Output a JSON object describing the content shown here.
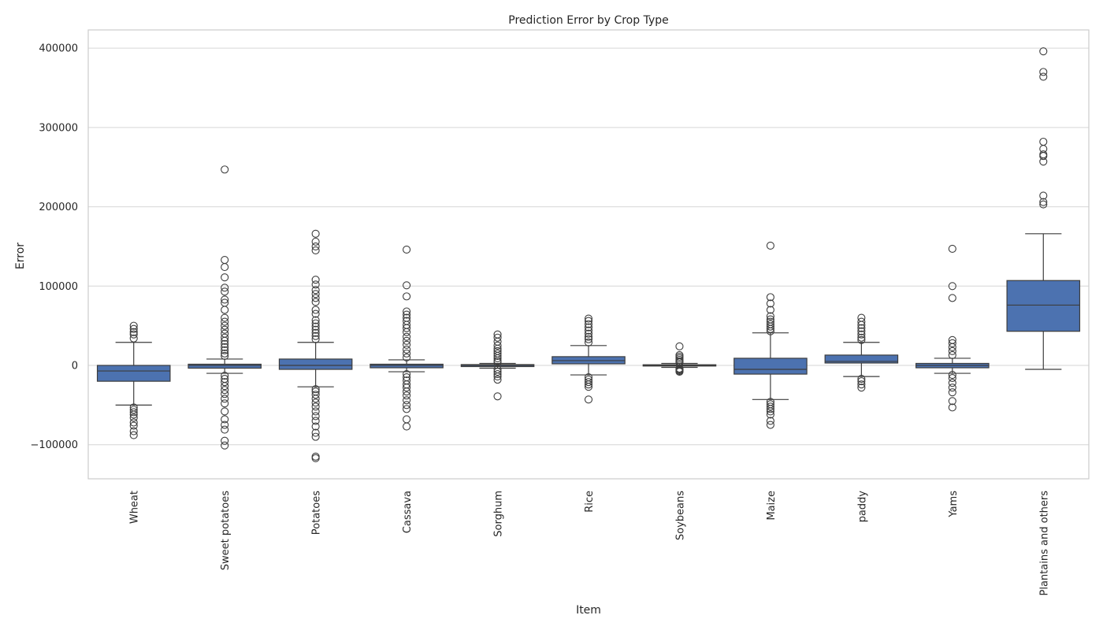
{
  "chart_data": {
    "type": "boxplot",
    "title": "Prediction Error by Crop Type",
    "xlabel": "Item",
    "ylabel": "Error",
    "ylim": [
      -143000,
      423000
    ],
    "yticks": [
      -100000,
      0,
      100000,
      200000,
      300000,
      400000
    ],
    "ytick_labels": [
      "−100000",
      "0",
      "100000",
      "200000",
      "300000",
      "400000"
    ],
    "grid": "horizontal",
    "colors": {
      "box": "#4c72b0",
      "edge": "#3d3d3d",
      "grid": "#d6d6d6",
      "spine": "#cccccc"
    },
    "categories": [
      "Wheat",
      "Sweet potatoes",
      "Potatoes",
      "Cassava",
      "Sorghum",
      "Rice",
      "Soybeans",
      "Maize",
      "paddy",
      "Yams",
      "Plantains and others"
    ],
    "boxes": [
      {
        "whisker_low": -50000,
        "q1": -20000,
        "median": -7000,
        "q3": 0,
        "whisker_high": 29000,
        "outliers": [
          50000,
          46000,
          42000,
          39000,
          34000,
          -53000,
          -56000,
          -59000,
          -62000,
          -66000,
          -72000,
          -76000,
          -83000,
          -88000
        ]
      },
      {
        "whisker_low": -10000,
        "q1": -3500,
        "median": 0,
        "q3": 1500,
        "whisker_high": 8000,
        "outliers": [
          247000,
          133000,
          124000,
          111000,
          98000,
          93000,
          83000,
          79000,
          70000,
          60000,
          55000,
          50000,
          45000,
          40000,
          35000,
          31000,
          27000,
          23000,
          19000,
          15000,
          12000,
          -13000,
          -17000,
          -21000,
          -26000,
          -31000,
          -36000,
          -42000,
          -48000,
          -58000,
          -68000,
          -75000,
          -81000,
          -95000,
          -101000
        ]
      },
      {
        "whisker_low": -27000,
        "q1": -5000,
        "median": 0,
        "q3": 8000,
        "whisker_high": 29000,
        "outliers": [
          166000,
          156000,
          150000,
          145000,
          108000,
          102000,
          95000,
          90000,
          85000,
          80000,
          70000,
          65000,
          57000,
          53000,
          49000,
          45000,
          41000,
          37000,
          33000,
          -30000,
          -33000,
          -37000,
          -42000,
          -47000,
          -52000,
          -58000,
          -64000,
          -70000,
          -77000,
          -85000,
          -90000,
          -115000,
          -117000
        ]
      },
      {
        "whisker_low": -8000,
        "q1": -3000,
        "median": 0,
        "q3": 1500,
        "whisker_high": 7000,
        "outliers": [
          146000,
          101000,
          87000,
          68000,
          64000,
          60000,
          56000,
          51000,
          47000,
          42000,
          36000,
          31000,
          26000,
          20000,
          15000,
          10000,
          -11000,
          -15000,
          -19000,
          -24000,
          -28000,
          -33000,
          -38000,
          -44000,
          -50000,
          -55000,
          -68000,
          -77000
        ]
      },
      {
        "whisker_low": -3500,
        "q1": -1500,
        "median": 0,
        "q3": 1000,
        "whisker_high": 2500,
        "outliers": [
          39000,
          35000,
          30000,
          25000,
          21000,
          18000,
          15000,
          12000,
          9000,
          6000,
          4000,
          -5000,
          -8000,
          -11000,
          -14000,
          -18000,
          -39000
        ]
      },
      {
        "whisker_low": -12000,
        "q1": 2000,
        "median": 6000,
        "q3": 11000,
        "whisker_high": 25000,
        "outliers": [
          59000,
          56000,
          52000,
          48000,
          44000,
          40000,
          36000,
          33000,
          29000,
          -15000,
          -18000,
          -21000,
          -24000,
          -27000,
          -43000
        ]
      },
      {
        "whisker_low": -2500,
        "q1": -800,
        "median": 0,
        "q3": 800,
        "whisker_high": 2500,
        "outliers": [
          24000,
          13000,
          11000,
          9000,
          7000,
          5000,
          4000,
          -4000,
          -5000,
          -6000,
          -7000,
          -8000
        ]
      },
      {
        "whisker_low": -43000,
        "q1": -11000,
        "median": -5000,
        "q3": 9000,
        "whisker_high": 41000,
        "outliers": [
          151000,
          86000,
          78000,
          70000,
          62000,
          58000,
          55000,
          52000,
          49000,
          46000,
          43000,
          -46000,
          -49000,
          -52000,
          -55000,
          -58000,
          -62000,
          -70000,
          -75000
        ]
      },
      {
        "whisker_low": -14000,
        "q1": 3000,
        "median": 5000,
        "q3": 13000,
        "whisker_high": 29000,
        "outliers": [
          60000,
          55000,
          51000,
          47000,
          43000,
          39000,
          35000,
          32000,
          -17000,
          -20000,
          -24000,
          -28000
        ]
      },
      {
        "whisker_low": -10000,
        "q1": -3000,
        "median": 0,
        "q3": 2500,
        "whisker_high": 9000,
        "outliers": [
          147000,
          100000,
          85000,
          32000,
          28000,
          23000,
          18000,
          13000,
          -12000,
          -16000,
          -22000,
          -28000,
          -34000,
          -45000,
          -53000
        ]
      },
      {
        "whisker_low": -5000,
        "q1": 43000,
        "median": 76000,
        "q3": 107000,
        "whisker_high": 166000,
        "outliers": [
          396000,
          370000,
          364000,
          282000,
          273000,
          266000,
          264000,
          257000,
          214000,
          206000,
          203000
        ]
      }
    ]
  }
}
